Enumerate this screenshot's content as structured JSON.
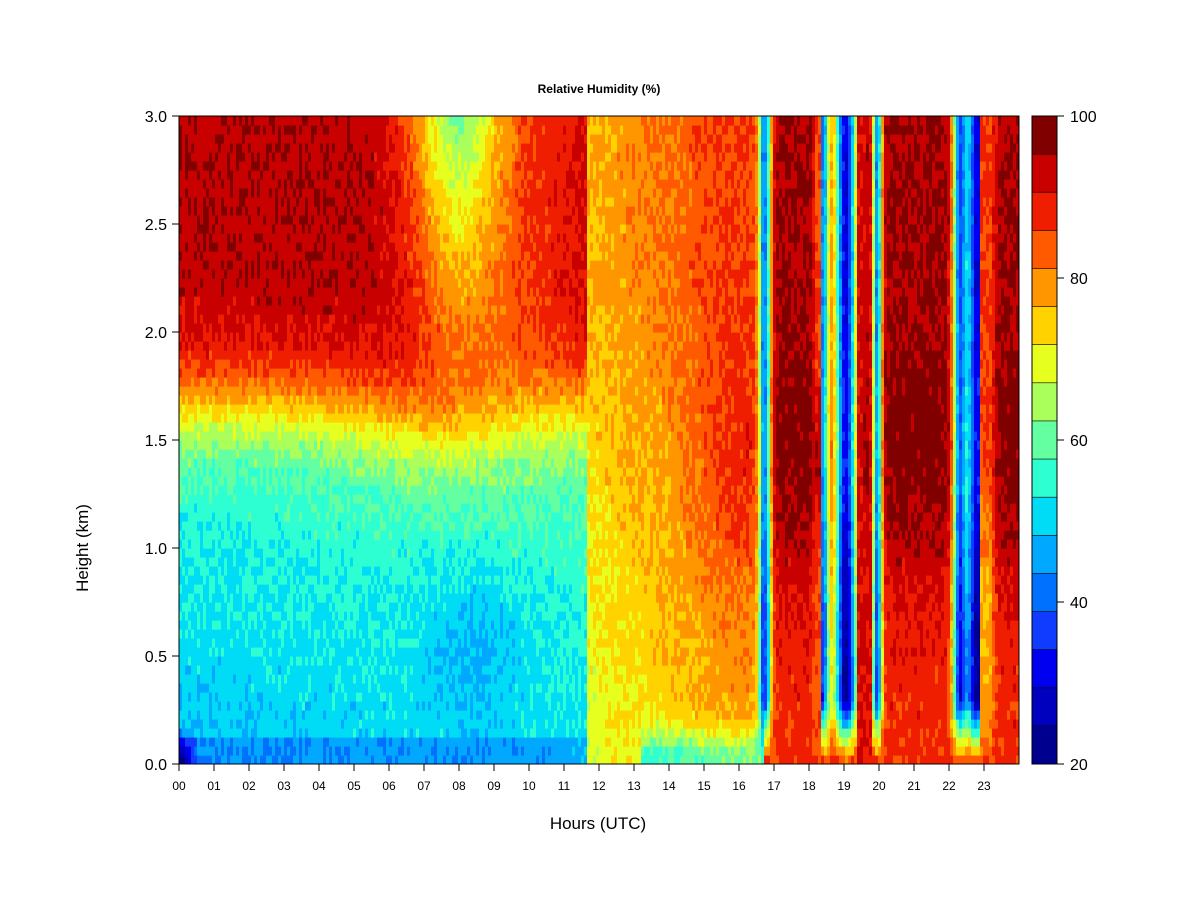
{
  "chart_data": {
    "type": "heatmap",
    "title": "Relative Humidity (%)",
    "xlabel": "Hours (UTC)",
    "ylabel": "Height (km)",
    "xlim": [
      0,
      24
    ],
    "ylim": [
      0.0,
      3.0
    ],
    "x_ticks": [
      "00",
      "01",
      "02",
      "03",
      "04",
      "05",
      "06",
      "07",
      "08",
      "09",
      "10",
      "11",
      "12",
      "13",
      "14",
      "15",
      "16",
      "17",
      "18",
      "19",
      "20",
      "21",
      "22",
      "23"
    ],
    "y_ticks": [
      "0.0",
      "0.5",
      "1.0",
      "1.5",
      "2.0",
      "2.5",
      "3.0"
    ],
    "colorbar": {
      "ticks": [
        "20",
        "40",
        "60",
        "80",
        "100"
      ],
      "levels": [
        20,
        25,
        30,
        35,
        40,
        45,
        50,
        55,
        60,
        65,
        70,
        75,
        80,
        85,
        90,
        95,
        100
      ],
      "colors": [
        "#00008f",
        "#0000bf",
        "#0000f0",
        "#0f3cff",
        "#0070ff",
        "#00a8ff",
        "#00dcf5",
        "#2dffd2",
        "#64ffa0",
        "#aaff5a",
        "#e6ff1e",
        "#ffd200",
        "#ff9600",
        "#ff5a00",
        "#f01e00",
        "#c80000",
        "#800000"
      ]
    },
    "z_description_profiles_hour_height_rh": [
      {
        "hour": 0,
        "rh_by_height": {
          "0.0": 20,
          "0.3": 50,
          "0.8": 52,
          "1.5": 70,
          "2.0": 88,
          "2.5": 99,
          "3.0": 99
        }
      },
      {
        "hour": 4,
        "rh_by_height": {
          "0.0": 45,
          "0.3": 52,
          "0.8": 54,
          "1.5": 72,
          "2.0": 96,
          "2.5": 99,
          "3.0": 97
        }
      },
      {
        "hour": 8,
        "rh_by_height": {
          "0.0": 52,
          "0.3": 50,
          "0.6": 45,
          "1.2": 55,
          "1.8": 68,
          "2.5": 78,
          "3.0": 52
        }
      },
      {
        "hour": 11,
        "rh_by_height": {
          "0.0": 60,
          "0.5": 55,
          "1.0": 60,
          "1.5": 68,
          "2.0": 85,
          "3.0": 88
        }
      },
      {
        "hour": 13,
        "rh_by_height": {
          "0.0": 65,
          "0.3": 72,
          "1.0": 80,
          "1.5": 86,
          "2.0": 90,
          "3.0": 92
        }
      },
      {
        "hour": 16,
        "rh_by_height": {
          "0.0": 65,
          "0.3": 82,
          "1.0": 86,
          "1.5": 90,
          "2.0": 94,
          "3.0": 95
        }
      },
      {
        "hour": 17.8,
        "rh_by_height": {
          "0.0": 80,
          "0.5": 88,
          "1.3": 97,
          "2.0": 92,
          "3.0": 98
        }
      },
      {
        "hour": 19.0,
        "rh_by_height": {
          "0.0": 80,
          "0.5": 55,
          "1.0": 35,
          "1.5": 30,
          "2.0": 45,
          "3.0": 60
        }
      },
      {
        "hour": 20.5,
        "rh_by_height": {
          "0.0": 85,
          "0.3": 95,
          "1.0": 85,
          "2.0": 98,
          "3.0": 100
        }
      },
      {
        "hour": 22.6,
        "rh_by_height": {
          "0.0": 80,
          "0.5": 50,
          "1.0": 38,
          "1.8": 28,
          "2.5": 45,
          "3.0": 60
        }
      }
    ]
  }
}
